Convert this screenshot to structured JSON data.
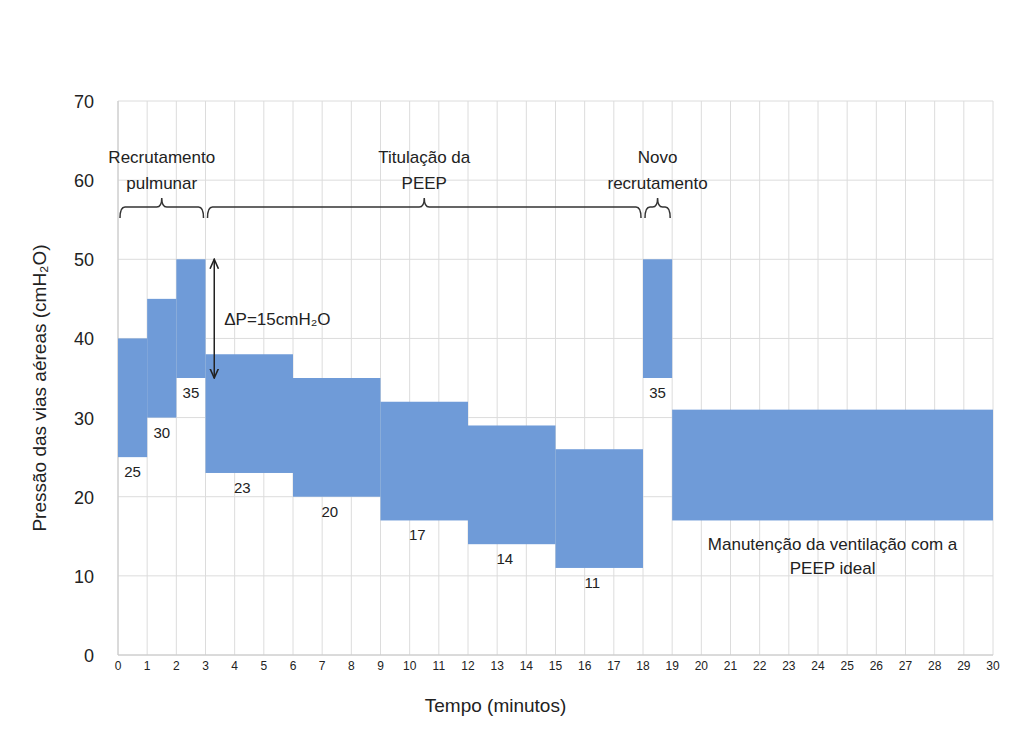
{
  "chart_data": {
    "type": "range_bar",
    "x_label": "Tempo (minutos)",
    "y_label": "Pressão das vias aéreas (cmH₂O)",
    "x": [
      0,
      1,
      2,
      3,
      6,
      9,
      12,
      15,
      18,
      19
    ],
    "x_end": [
      1,
      2,
      3,
      6,
      9,
      12,
      15,
      18,
      19,
      30
    ],
    "low": [
      25,
      30,
      35,
      23,
      20,
      17,
      14,
      11,
      35,
      17
    ],
    "high": [
      40,
      45,
      50,
      38,
      35,
      32,
      29,
      26,
      50,
      31
    ],
    "value_labels": [
      "25",
      "30",
      "35",
      "23",
      "20",
      "17",
      "14",
      "11",
      "35",
      null
    ],
    "color": "#6f9bd8",
    "xlim": [
      0,
      30
    ],
    "xticks": [
      0,
      1,
      2,
      3,
      4,
      5,
      6,
      7,
      8,
      9,
      10,
      11,
      12,
      13,
      14,
      15,
      16,
      17,
      18,
      19,
      20,
      21,
      22,
      23,
      24,
      25,
      26,
      27,
      28,
      29,
      30
    ],
    "ylim": [
      0,
      70
    ],
    "yticks": [
      0,
      10,
      20,
      30,
      40,
      50,
      60,
      70
    ],
    "grid": true,
    "brackets": [
      {
        "label": [
          "Recrutamento",
          "pulmunar"
        ],
        "from": 0,
        "to": 3
      },
      {
        "label": [
          "Titulação da",
          "PEEP"
        ],
        "from": 3,
        "to": 18
      },
      {
        "label": [
          "Novo",
          "recrutamento"
        ],
        "from": 18,
        "to": 19
      }
    ],
    "delta_p": {
      "label": "ΔP=15cmH₂O",
      "x": 3.3,
      "from": 50,
      "to": 35
    },
    "note": {
      "label": [
        "Manutenção da ventilação com a",
        "PEEP ideal"
      ]
    }
  }
}
